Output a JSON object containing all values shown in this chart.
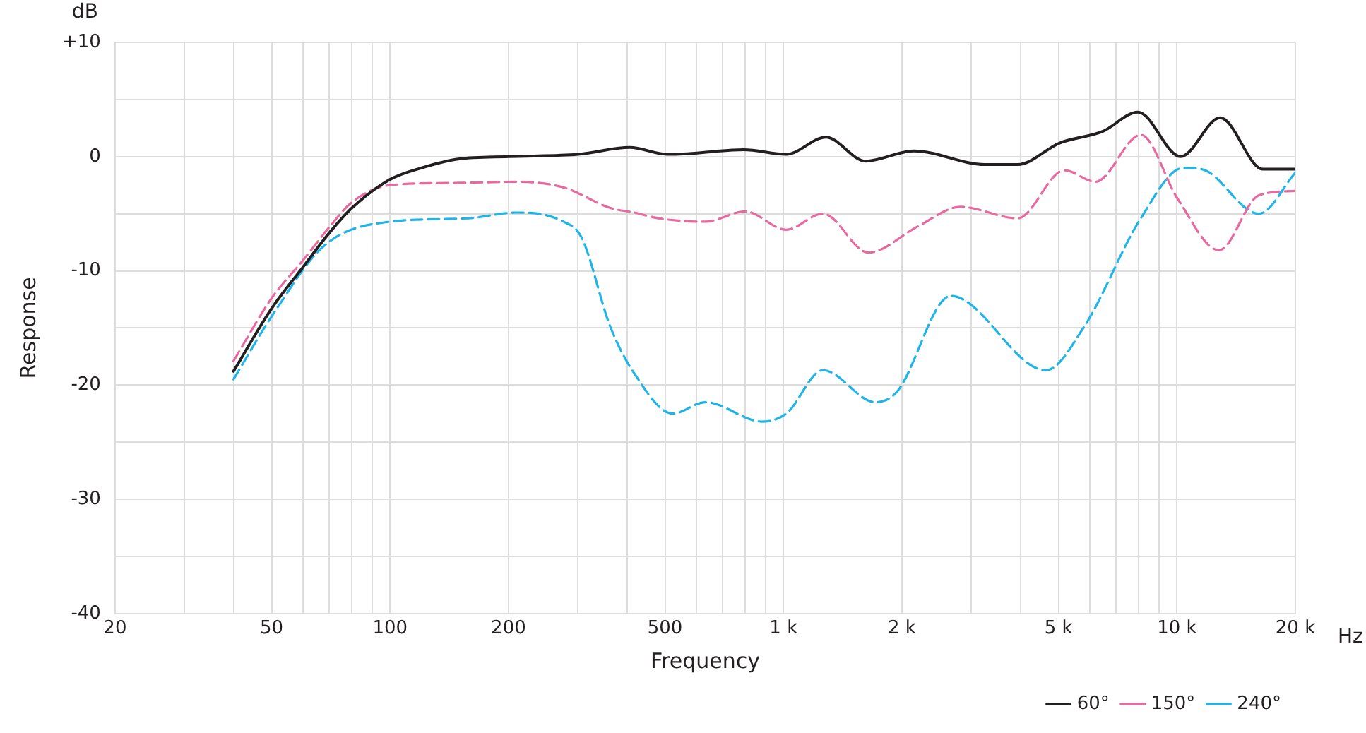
{
  "chart_data": {
    "type": "line",
    "xlabel": "Frequency",
    "ylabel": "Response",
    "annotations": [
      "dB",
      "Hz"
    ],
    "log": "x",
    "grid": true,
    "legend": "bottom right",
    "marker": "none",
    "xlim": [
      20,
      20000
    ],
    "ylim": [
      -40,
      10
    ],
    "xticks": [
      20,
      {
        "value": 30,
        "label": null
      },
      {
        "value": 40,
        "label": null
      },
      50,
      {
        "value": 60,
        "label": null
      },
      {
        "value": 70,
        "label": null
      },
      {
        "value": 80,
        "label": null
      },
      {
        "value": 90,
        "label": null
      },
      100,
      200,
      {
        "value": 300,
        "label": null
      },
      {
        "value": 400,
        "label": null
      },
      500,
      {
        "value": 600,
        "label": null
      },
      {
        "value": 700,
        "label": null
      },
      {
        "value": 800,
        "label": null
      },
      {
        "value": 900,
        "label": null
      },
      {
        "value": 1000,
        "label": "1 k"
      },
      {
        "value": 2000,
        "label": "2 k"
      },
      {
        "value": 3000,
        "label": null
      },
      {
        "value": 4000,
        "label": null
      },
      {
        "value": 5000,
        "label": "5 k"
      },
      {
        "value": 6000,
        "label": null
      },
      {
        "value": 7000,
        "label": null
      },
      {
        "value": 8000,
        "label": null
      },
      {
        "value": 9000,
        "label": null
      },
      {
        "value": 10000,
        "label": "10 k"
      },
      {
        "value": 20000,
        "label": "20 k"
      }
    ],
    "yticks": [
      -40,
      {
        "value": -35,
        "label": null
      },
      -30,
      {
        "value": -25,
        "label": null
      },
      -20,
      {
        "value": -15,
        "label": null
      },
      -10,
      {
        "value": -5,
        "label": null
      },
      0,
      {
        "value": 5,
        "label": null
      },
      {
        "value": 10,
        "label": "+10"
      }
    ],
    "series": [
      {
        "name": "60°",
        "color": "#231f20",
        "line_style": "solid",
        "x": [
          40,
          50,
          60,
          70,
          80,
          100,
          120,
          150,
          200,
          300,
          407,
          506,
          523,
          792,
          1016,
          1282,
          1617,
          2145,
          3250,
          3934,
          5044,
          6472,
          7962,
          10212,
          12885,
          16530,
          20000
        ],
        "values": [
          -18.8,
          -13.3,
          -9.7,
          -6.7,
          -4.5,
          -2,
          -1,
          -0.2,
          0,
          0.2,
          0.8,
          0.2,
          0.2,
          0.6,
          0.2,
          1.7,
          -0.4,
          0.5,
          -0.7,
          -0.7,
          1.2,
          2.2,
          3.9,
          0,
          3.4,
          -1.1,
          -1.1
        ]
      },
      {
        "name": "150°",
        "color": "#e8699f",
        "line_style": "dashed",
        "x": [
          40,
          50,
          60,
          70,
          80,
          100,
          150,
          209,
          276,
          363,
          418,
          481,
          633,
          799,
          1016,
          1260,
          1644,
          2198,
          2819,
          3934,
          5176,
          6209,
          8095,
          10046,
          12790,
          16140,
          20000
        ],
        "values": [
          -17.9,
          -12.4,
          -9.1,
          -6.2,
          -4,
          -2.5,
          -2.3,
          -2.2,
          -2.7,
          -4.5,
          -4.9,
          -5.4,
          -5.7,
          -4.8,
          -6.4,
          -5,
          -8.4,
          -6.1,
          -4.4,
          -5.4,
          -1.2,
          -2.2,
          1.9,
          -3.7,
          -8.2,
          -3.4,
          -3
        ]
      },
      {
        "name": "240°",
        "color": "#1eb4e8",
        "line_style": "dashed",
        "x": [
          40,
          50,
          68,
          100,
          158,
          209,
          276,
          307,
          363,
          418,
          523,
          633,
          882,
          1016,
          1260,
          1714,
          1941,
          2661,
          4645,
          5808,
          8095,
          10376,
          11560,
          16140,
          20000
        ],
        "values": [
          -19.5,
          -14,
          -7.8,
          -5.7,
          -5.4,
          -4.9,
          -5.7,
          -7.1,
          -14.9,
          -19,
          -22.5,
          -21.5,
          -23.2,
          -22.5,
          -18.7,
          -21.5,
          -20.6,
          -12.2,
          -18.7,
          -14.9,
          -5.4,
          -1,
          -1.1,
          -5,
          -1.4
        ]
      }
    ]
  }
}
